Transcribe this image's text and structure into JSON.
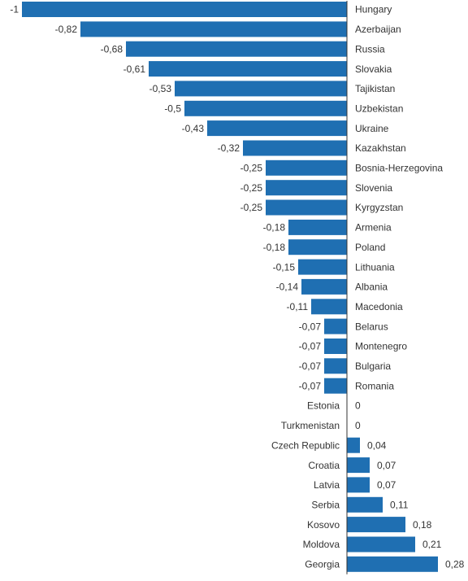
{
  "chart_data": {
    "type": "bar",
    "orientation": "horizontal",
    "title": "",
    "xlabel": "",
    "ylabel": "",
    "xlim": [
      -1,
      0.28
    ],
    "grid": false,
    "legend": "none",
    "bar_color": "#1f6fb2",
    "axis_color": "#333333",
    "categories": [
      "Hungary",
      "Azerbaijan",
      "Russia",
      "Slovakia",
      "Tajikistan",
      "Uzbekistan",
      "Ukraine",
      "Kazakhstan",
      "Bosnia-Herzegovina",
      "Slovenia",
      "Kyrgyzstan",
      "Armenia",
      "Poland",
      "Lithuania",
      "Albania",
      "Macedonia",
      "Belarus",
      "Montenegro",
      "Bulgaria",
      "Romania",
      "Estonia",
      "Turkmenistan",
      "Czech Republic",
      "Croatia",
      "Latvia",
      "Serbia",
      "Kosovo",
      "Moldova",
      "Georgia"
    ],
    "values": [
      -1,
      -0.82,
      -0.68,
      -0.61,
      -0.53,
      -0.5,
      -0.43,
      -0.32,
      -0.25,
      -0.25,
      -0.25,
      -0.18,
      -0.18,
      -0.15,
      -0.14,
      -0.11,
      -0.07,
      -0.07,
      -0.07,
      -0.07,
      0,
      0,
      0.04,
      0.07,
      0.07,
      0.11,
      0.18,
      0.21,
      0.28
    ],
    "value_labels": [
      "-1",
      "-0,82",
      "-0,68",
      "-0,61",
      "-0,53",
      "-0,5",
      "-0,43",
      "-0,32",
      "-0,25",
      "-0,25",
      "-0,25",
      "-0,18",
      "-0,18",
      "-0,15",
      "-0,14",
      "-0,11",
      "-0,07",
      "-0,07",
      "-0,07",
      "-0,07",
      "0",
      "0",
      "0,04",
      "0,07",
      "0,07",
      "0,11",
      "0,18",
      "0,21",
      "0,28"
    ]
  }
}
